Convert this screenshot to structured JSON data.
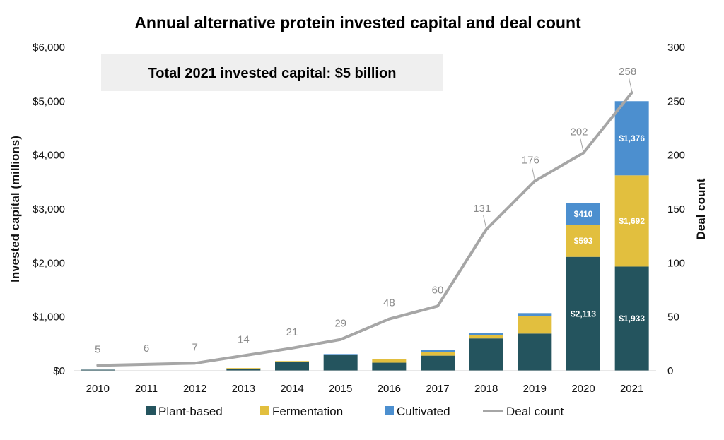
{
  "chart_data": {
    "type": "bar",
    "stacked": true,
    "title": "Annual alternative protein invested capital and deal count",
    "annotation": "Total 2021 invested capital: $5 billion",
    "categories": [
      "2010",
      "2011",
      "2012",
      "2013",
      "2014",
      "2015",
      "2016",
      "2017",
      "2018",
      "2019",
      "2020",
      "2021"
    ],
    "ylabel": "Invested capital (millions)",
    "y2label": "Deal count",
    "ylim": [
      0,
      6000
    ],
    "y2lim": [
      0,
      300
    ],
    "yticks": [
      0,
      1000,
      2000,
      3000,
      4000,
      5000,
      6000
    ],
    "ytick_labels": [
      "$0",
      "$1,000",
      "$2,000",
      "$3,000",
      "$4,000",
      "$5,000",
      "$6,000"
    ],
    "y2ticks": [
      0,
      50,
      100,
      150,
      200,
      250,
      300
    ],
    "y2tick_labels": [
      "0",
      "50",
      "100",
      "150",
      "200",
      "250",
      "300"
    ],
    "series": [
      {
        "name": "Plant-based",
        "color": "#24545e",
        "values": [
          20,
          5,
          5,
          45,
          175,
          290,
          150,
          280,
          600,
          690,
          2113,
          1933
        ],
        "labels": [
          "",
          "",
          "",
          "",
          "",
          "",
          "",
          "",
          "",
          "",
          "$2,113",
          "$1,933"
        ]
      },
      {
        "name": "Fermentation",
        "color": "#e2bf3e",
        "values": [
          0,
          0,
          0,
          5,
          5,
          15,
          60,
          70,
          55,
          320,
          593,
          1692
        ],
        "labels": [
          "",
          "",
          "",
          "",
          "",
          "",
          "",
          "",
          "",
          "",
          "$593",
          "$1,692"
        ]
      },
      {
        "name": "Cultivated",
        "color": "#4c8fcf",
        "values": [
          0,
          0,
          0,
          0,
          0,
          5,
          10,
          30,
          50,
          60,
          410,
          1376
        ],
        "labels": [
          "",
          "",
          "",
          "",
          "",
          "",
          "",
          "",
          "",
          "",
          "$410",
          "$1,376"
        ]
      }
    ],
    "line_series": {
      "name": "Deal count",
      "color": "#a6a6a6",
      "axis": "right",
      "values": [
        5,
        6,
        7,
        14,
        21,
        29,
        48,
        60,
        131,
        176,
        202,
        258
      ],
      "labels": [
        "5",
        "6",
        "7",
        "14",
        "21",
        "29",
        "48",
        "60",
        "131",
        "176",
        "202",
        "258"
      ]
    },
    "legend": [
      "Plant-based",
      "Fermentation",
      "Cultivated",
      "Deal count"
    ],
    "grid": false
  }
}
